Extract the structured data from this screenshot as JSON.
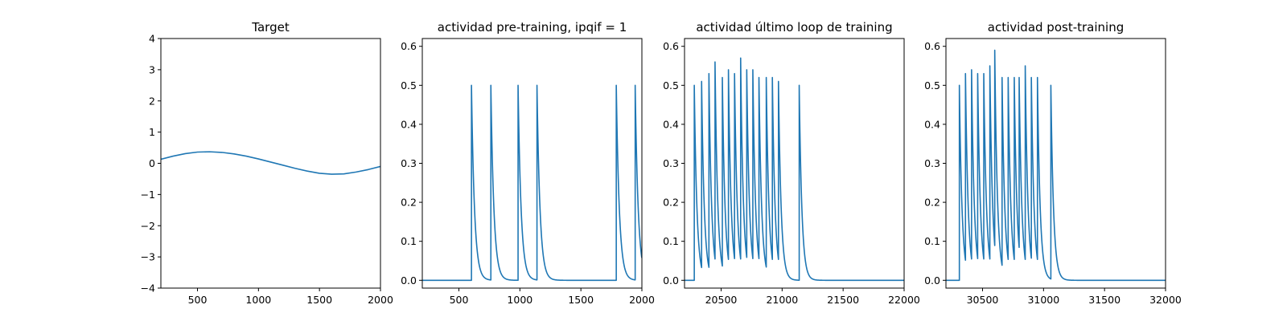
{
  "colors": {
    "line": "#1f77b4"
  },
  "chart_data": [
    {
      "type": "line",
      "title": "Target",
      "xlim": [
        200,
        2000
      ],
      "ylim": [
        -4,
        4
      ],
      "xticks": [
        500,
        1000,
        1500,
        2000
      ],
      "yticks": [
        -4,
        -3,
        -2,
        -1,
        0,
        1,
        2,
        3,
        4
      ],
      "series": [
        {
          "x": [
            200,
            300,
            400,
            500,
            600,
            700,
            800,
            900,
            1000,
            1100,
            1200,
            1300,
            1400,
            1500,
            1600,
            1700,
            1800,
            1900,
            2000
          ],
          "y": [
            0.13,
            0.23,
            0.31,
            0.36,
            0.37,
            0.35,
            0.3,
            0.23,
            0.14,
            0.04,
            -0.06,
            -0.16,
            -0.25,
            -0.32,
            -0.35,
            -0.34,
            -0.28,
            -0.2,
            -0.1
          ]
        }
      ],
      "spikes": []
    },
    {
      "type": "line",
      "title": "actividad pre-training, ipqif = 1",
      "xlim": [
        200,
        2000
      ],
      "ylim": [
        -0.02,
        0.62
      ],
      "xticks": [
        500,
        1000,
        1500,
        2000
      ],
      "yticks": [
        0.0,
        0.1,
        0.2,
        0.3,
        0.4,
        0.5,
        0.6
      ],
      "series": [],
      "spikes": {
        "times": [
          603,
          762,
          985,
          1140,
          1790,
          1945
        ],
        "peaks": [
          0.5,
          0.5,
          0.5,
          0.5,
          0.5,
          0.5
        ],
        "decay": 25,
        "baseline": 0.0
      }
    },
    {
      "type": "line",
      "title": "actividad último loop de training",
      "xlim": [
        20200,
        22000
      ],
      "ylim": [
        -0.02,
        0.62
      ],
      "xticks": [
        20500,
        21000,
        21500,
        22000
      ],
      "yticks": [
        0.0,
        0.1,
        0.2,
        0.3,
        0.4,
        0.5,
        0.6
      ],
      "series": [],
      "spikes": {
        "times": [
          20280,
          20340,
          20400,
          20450,
          20510,
          20560,
          20610,
          20660,
          20710,
          20760,
          20810,
          20870,
          20920,
          20970,
          21140
        ],
        "peaks": [
          0.5,
          0.51,
          0.53,
          0.56,
          0.52,
          0.54,
          0.53,
          0.57,
          0.54,
          0.54,
          0.52,
          0.52,
          0.52,
          0.51,
          0.5
        ],
        "decay": 22,
        "baseline": 0.0
      }
    },
    {
      "type": "line",
      "title": "actividad post-training",
      "xlim": [
        30200,
        32000
      ],
      "ylim": [
        -0.02,
        0.62
      ],
      "xticks": [
        30500,
        31000,
        31500,
        32000
      ],
      "yticks": [
        0.0,
        0.1,
        0.2,
        0.3,
        0.4,
        0.5,
        0.6
      ],
      "series": [],
      "spikes": {
        "times": [
          30310,
          30360,
          30410,
          30460,
          30510,
          30560,
          30600,
          30660,
          30710,
          30760,
          30800,
          30850,
          30900,
          30950,
          31060
        ],
        "peaks": [
          0.5,
          0.53,
          0.54,
          0.53,
          0.53,
          0.55,
          0.59,
          0.52,
          0.52,
          0.52,
          0.52,
          0.55,
          0.52,
          0.52,
          0.5
        ],
        "decay": 22,
        "baseline": 0.0
      }
    }
  ]
}
